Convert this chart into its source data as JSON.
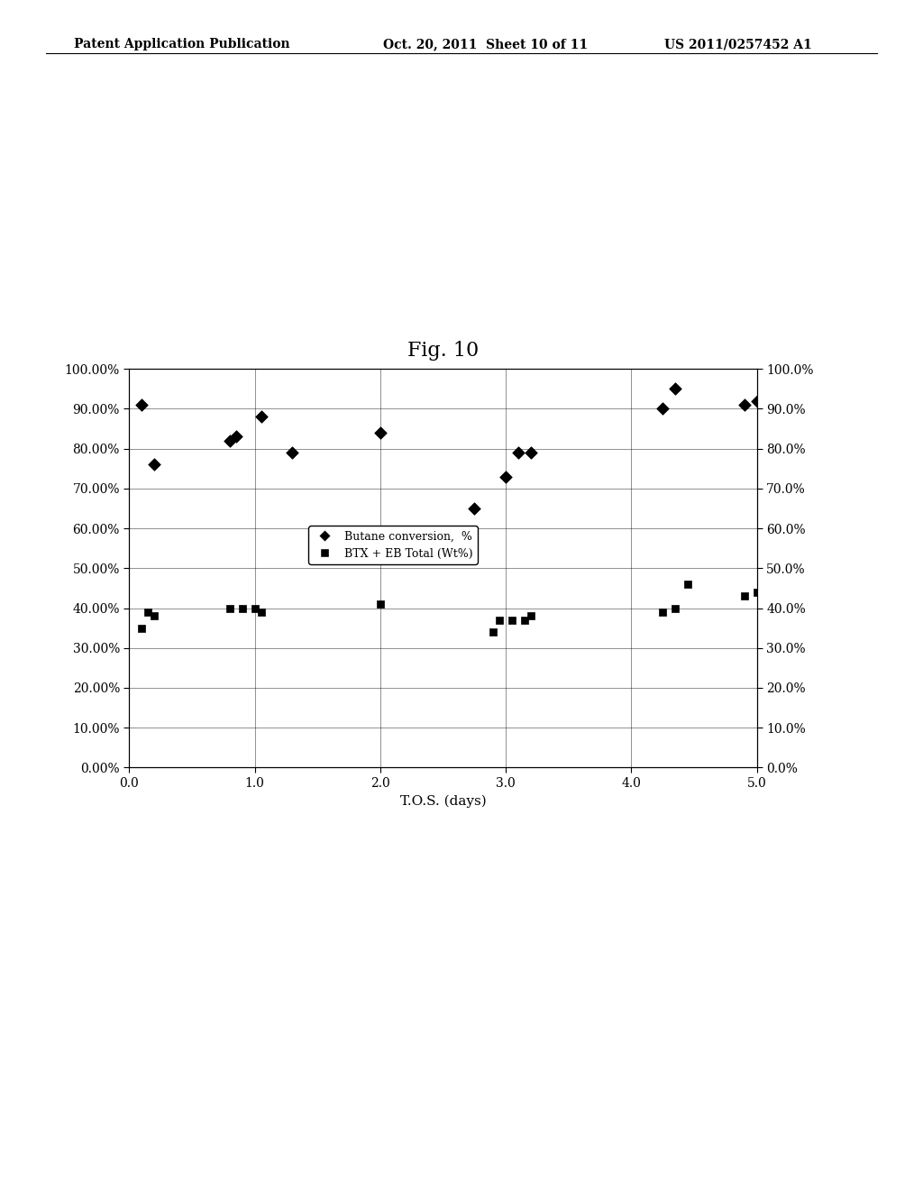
{
  "title": "Fig. 10",
  "xlabel": "T.O.S. (days)",
  "xlim": [
    0.0,
    5.0
  ],
  "ylim": [
    0.0,
    1.0
  ],
  "xticks": [
    0.0,
    1.0,
    2.0,
    3.0,
    4.0,
    5.0
  ],
  "ytick_labels_left": [
    "0.00%",
    "10.00%",
    "20.00%",
    "30.00%",
    "40.00%",
    "50.00%",
    "60.00%",
    "70.00%",
    "80.00%",
    "90.00%",
    "100.00%"
  ],
  "ytick_labels_right": [
    "0.0%",
    "10.0%",
    "20.0%",
    "30.0%",
    "40.0%",
    "50.0%",
    "60.0%",
    "70.0%",
    "80.0%",
    "90.0%",
    "100.0%"
  ],
  "diamond_x": [
    0.1,
    0.2,
    0.8,
    0.85,
    1.05,
    1.3,
    2.0,
    2.75,
    3.0,
    3.1,
    3.2,
    4.25,
    4.35,
    4.9,
    5.0
  ],
  "diamond_y": [
    0.91,
    0.76,
    0.82,
    0.83,
    0.88,
    0.79,
    0.84,
    0.65,
    0.73,
    0.79,
    0.79,
    0.9,
    0.95,
    0.91,
    0.92
  ],
  "square_x": [
    0.1,
    0.15,
    0.2,
    0.8,
    0.9,
    1.0,
    1.05,
    2.0,
    2.9,
    2.95,
    3.05,
    3.15,
    3.2,
    4.25,
    4.35,
    4.45,
    4.9,
    5.0
  ],
  "square_y": [
    0.35,
    0.39,
    0.38,
    0.4,
    0.4,
    0.4,
    0.39,
    0.41,
    0.34,
    0.37,
    0.37,
    0.37,
    0.38,
    0.39,
    0.4,
    0.46,
    0.43,
    0.44
  ],
  "legend_diamond_label": "Butane conversion,  %",
  "legend_square_label": "BTX + EB Total (Wt%)",
  "header_left": "Patent Application Publication",
  "header_center": "Oct. 20, 2011  Sheet 10 of 11",
  "header_right": "US 2011/0257452 A1",
  "background_color": "#ffffff",
  "marker_color": "#000000",
  "font_family": "serif",
  "header_fontsize": 10,
  "title_fontsize": 16,
  "tick_fontsize": 10,
  "xlabel_fontsize": 11,
  "legend_fontsize": 9
}
